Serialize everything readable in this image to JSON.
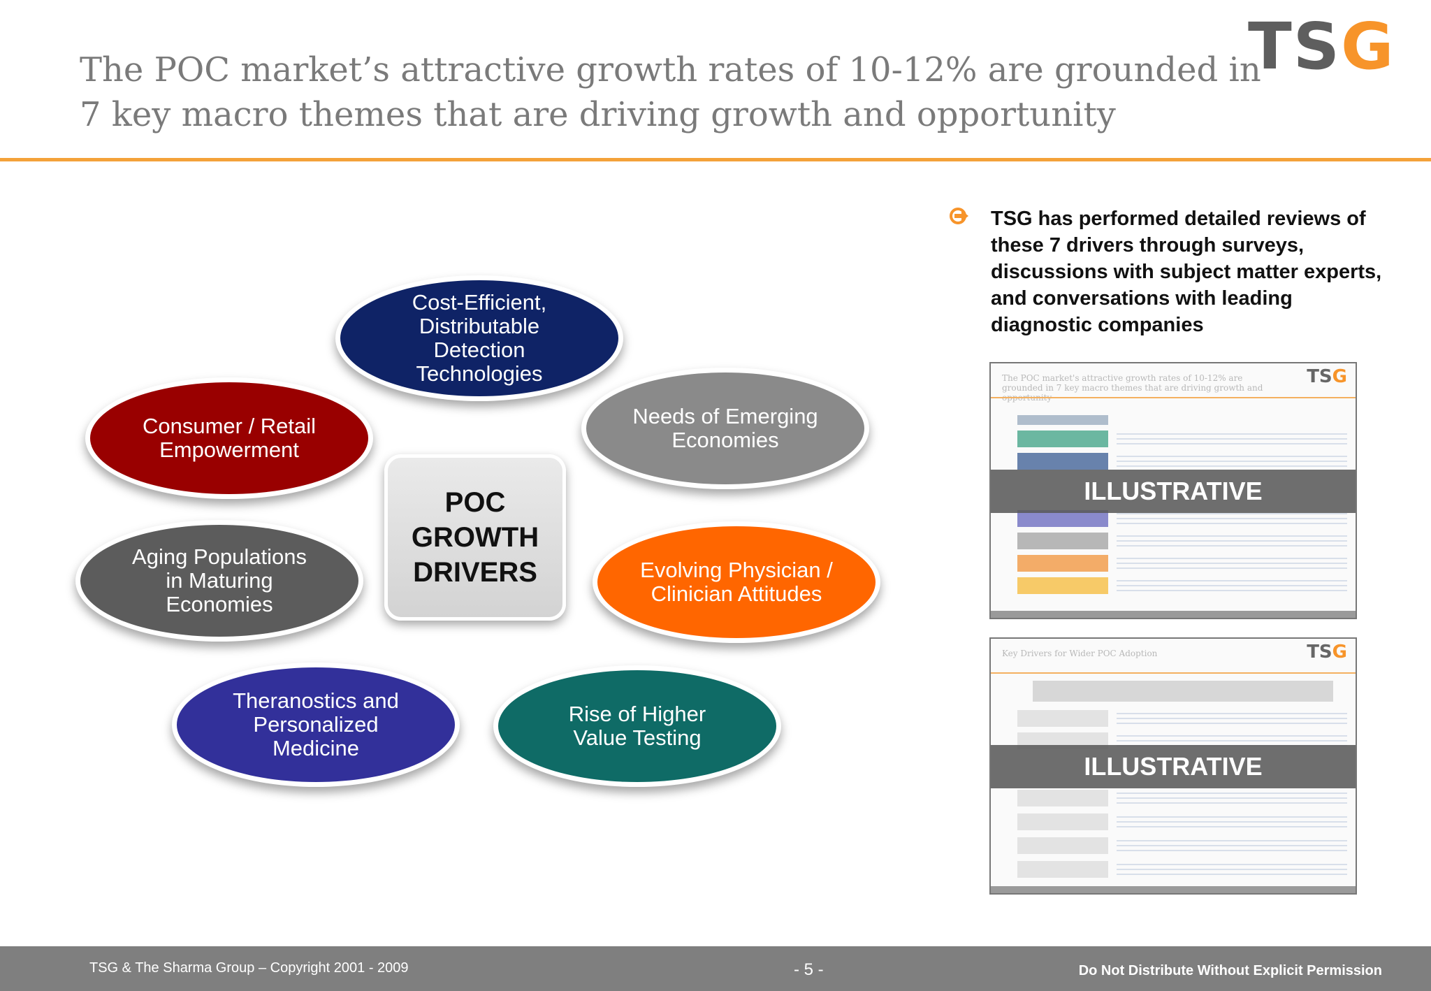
{
  "header": {
    "title_line1": "The POC market’s attractive growth rates of 10-12% are grounded in",
    "title_line2": "7 key macro themes that are driving growth and opportunity",
    "logo_part1": "TS",
    "logo_part2": "G"
  },
  "diagram": {
    "center_label": "POC\nGROWTH\nDRIVERS",
    "drivers": [
      {
        "label": "Cost-Efficient, Distributable Detection Technologies",
        "color": "#0f2366"
      },
      {
        "label": "Consumer / Retail Empowerment",
        "color": "#990000"
      },
      {
        "label": "Needs of Emerging Economies",
        "color": "#8a8a8a"
      },
      {
        "label": "Aging Populations in Maturing Economies",
        "color": "#5c5c5c"
      },
      {
        "label": "Evolving Physician / Clinician Attitudes",
        "color": "#ff6600"
      },
      {
        "label": "Theranostics and Personalized Medicine",
        "color": "#32309a"
      },
      {
        "label": "Rise of Higher Value Testing",
        "color": "#0f6b66"
      }
    ]
  },
  "sidebar": {
    "bullet": "TSG has performed detailed reviews of these 7 drivers through surveys, discussions with subject matter experts, and conversations with leading diagnostic companies",
    "thumbnail1": {
      "title": "The POC market's attractive growth rates of 10-12% are grounded in 7 key macro themes that are driving growth and opportunity",
      "logo_part1": "TS",
      "logo_part2": "G",
      "overlay": "ILLUSTRATIVE"
    },
    "thumbnail2": {
      "title": "Key Drivers for Wider POC Adoption",
      "logo_part1": "TS",
      "logo_part2": "G",
      "overlay": "ILLUSTRATIVE"
    }
  },
  "footer": {
    "copyright": "TSG & The Sharma Group – Copyright 2001 - 2009",
    "page": "- 5 -",
    "notice": "Do Not Distribute Without Explicit Permission"
  }
}
